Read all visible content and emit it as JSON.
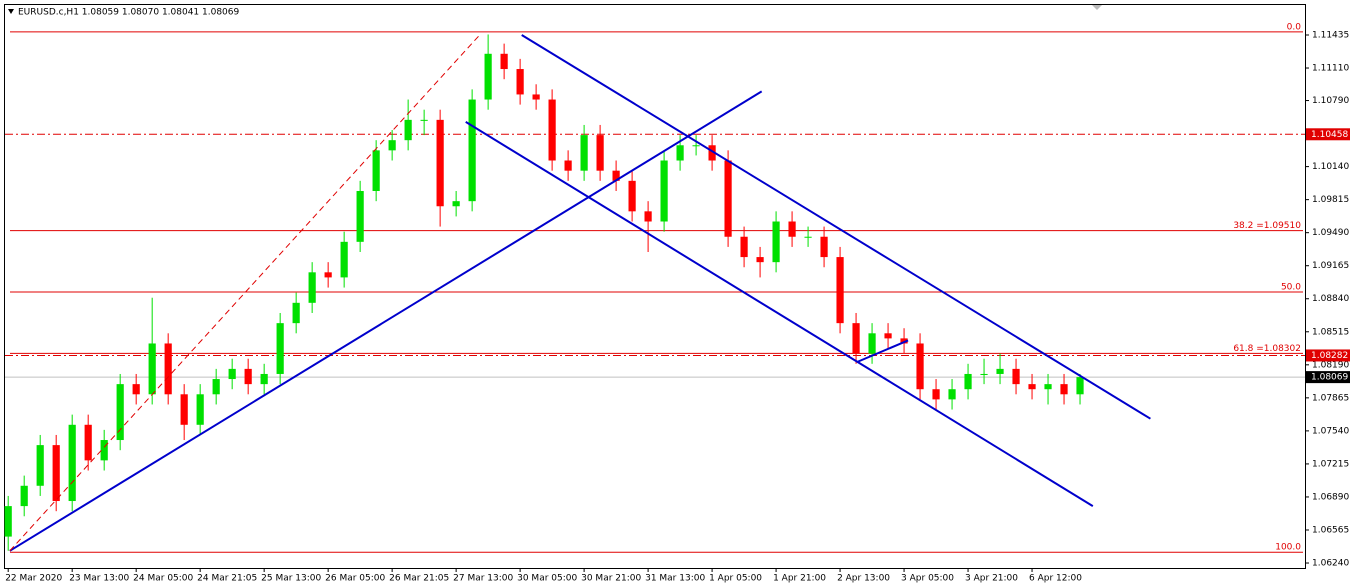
{
  "chart_data": {
    "type": "candlestick",
    "title": "EURUSD.c,H1  1.08059 1.08070 1.08041 1.08069",
    "categories": [
      "22 Mar 2020",
      null,
      null,
      null,
      "23 Mar 13:00",
      null,
      null,
      null,
      "24 Mar 05:00",
      null,
      null,
      null,
      "24 Mar 21:05",
      null,
      null,
      null,
      "25 Mar 13:00",
      null,
      null,
      null,
      "26 Mar 05:00",
      null,
      null,
      null,
      "26 Mar 21:05",
      null,
      null,
      null,
      "27 Mar 13:00",
      null,
      null,
      null,
      "30 Mar 05:00",
      null,
      null,
      null,
      "30 Mar 21:00",
      null,
      null,
      null,
      "31 Mar 13:00",
      null,
      null,
      null,
      "1 Apr 05:00",
      null,
      null,
      null,
      "1 Apr 21:00",
      null,
      null,
      null,
      "2 Apr 13:00",
      null,
      null,
      null,
      "3 Apr 05:00",
      null,
      null,
      null,
      "3 Apr 21:00",
      null,
      null,
      null,
      "6 Apr 12:00",
      null,
      null,
      null
    ],
    "open": [
      1.065,
      1.068,
      1.07,
      1.074,
      1.0685,
      1.076,
      1.0725,
      1.0745,
      1.08,
      1.079,
      1.084,
      1.079,
      1.076,
      1.079,
      1.0805,
      1.0815,
      1.08,
      1.081,
      1.086,
      1.088,
      1.091,
      1.0905,
      1.094,
      1.099,
      1.103,
      1.104,
      1.106,
      1.106,
      1.0975,
      1.098,
      1.108,
      1.1125,
      1.111,
      1.1085,
      1.108,
      1.102,
      1.101,
      1.1045,
      1.101,
      1.1,
      1.097,
      1.096,
      1.102,
      1.1035,
      1.1035,
      1.102,
      1.0945,
      1.0925,
      1.092,
      1.096,
      1.0945,
      1.0945,
      1.0925,
      1.086,
      1.083,
      1.085,
      1.0845,
      1.084,
      1.0795,
      1.0785,
      1.0795,
      1.081,
      1.081,
      1.0815,
      1.08,
      1.0795,
      1.08,
      1.079
    ],
    "high": [
      1.069,
      1.071,
      1.075,
      1.075,
      1.077,
      1.077,
      1.0755,
      1.081,
      1.081,
      1.0885,
      1.085,
      1.08,
      1.08,
      1.0815,
      1.0825,
      1.0825,
      1.082,
      1.087,
      1.089,
      1.092,
      1.092,
      1.095,
      1.1,
      1.104,
      1.105,
      1.108,
      1.107,
      1.107,
      1.099,
      1.109,
      1.1144,
      1.1135,
      1.112,
      1.1095,
      1.109,
      1.103,
      1.1055,
      1.1055,
      1.102,
      1.101,
      1.098,
      1.103,
      1.1045,
      1.1045,
      1.1045,
      1.103,
      1.0955,
      1.0935,
      1.097,
      1.097,
      1.0955,
      1.0955,
      1.0935,
      1.087,
      1.086,
      1.086,
      1.0855,
      1.085,
      1.0805,
      1.0805,
      1.082,
      1.0825,
      1.083,
      1.0825,
      1.081,
      1.081,
      1.081,
      1.081
    ],
    "low": [
      1.0636,
      1.067,
      1.069,
      1.0675,
      1.0675,
      1.0715,
      1.0715,
      1.0735,
      1.078,
      1.078,
      1.078,
      1.0745,
      1.075,
      1.078,
      1.0795,
      1.079,
      1.079,
      1.08,
      1.085,
      1.087,
      1.0895,
      1.0895,
      1.093,
      1.098,
      1.102,
      1.103,
      1.1045,
      1.0955,
      1.0965,
      1.097,
      1.107,
      1.11,
      1.1075,
      1.107,
      1.101,
      1.1,
      1.1,
      1.1,
      1.099,
      1.096,
      1.093,
      1.095,
      1.101,
      1.1025,
      1.101,
      1.0935,
      1.0915,
      1.0905,
      1.091,
      1.0935,
      1.0935,
      1.0915,
      1.085,
      1.082,
      1.082,
      1.0835,
      1.083,
      1.0785,
      1.0775,
      1.0775,
      1.0785,
      1.08,
      1.08,
      1.079,
      1.0785,
      1.078,
      1.078,
      1.078
    ],
    "close": [
      1.068,
      1.07,
      1.074,
      1.0685,
      1.076,
      1.0725,
      1.0745,
      1.08,
      1.079,
      1.084,
      1.079,
      1.076,
      1.079,
      1.0805,
      1.0815,
      1.08,
      1.081,
      1.086,
      1.088,
      1.091,
      1.0905,
      1.094,
      1.099,
      1.103,
      1.104,
      1.106,
      1.106,
      1.0975,
      1.098,
      1.108,
      1.1125,
      1.111,
      1.1085,
      1.108,
      1.102,
      1.101,
      1.1045,
      1.101,
      1.1,
      1.097,
      1.096,
      1.102,
      1.1035,
      1.1035,
      1.102,
      1.0945,
      1.0925,
      1.092,
      1.096,
      1.0945,
      1.0945,
      1.0925,
      1.086,
      1.083,
      1.085,
      1.0845,
      1.084,
      1.0795,
      1.0785,
      1.0795,
      1.081,
      1.081,
      1.0815,
      1.08,
      1.0795,
      1.08,
      1.079,
      1.08069
    ],
    "up_color": "#00e000",
    "down_color": "#ff0000",
    "xlim": [
      -0.2,
      80.75
    ],
    "ylim": [
      1.06191,
      1.1173
    ],
    "yticks": [
      1.11435,
      {
        "value": 1.1111,
        "label": "1.11110"
      },
      {
        "value": 1.1079,
        "label": "1.10790"
      },
      {
        "value": 1.1014,
        "label": "1.10140"
      },
      1.09815,
      {
        "value": 1.0949,
        "label": "1.09490"
      },
      1.09165,
      {
        "value": 1.0884,
        "label": "1.08840"
      },
      1.08515,
      {
        "value": 1.0819,
        "label": "1.08190"
      },
      1.07865,
      {
        "value": 1.0754,
        "label": "1.07540"
      },
      1.07215,
      {
        "value": 1.0689,
        "label": "1.06890"
      },
      1.06565,
      {
        "value": 1.0624,
        "label": "1.06240"
      }
    ],
    "fib_color": "#e00000",
    "fib_levels": [
      {
        "label": "0.0",
        "value": 1.11465
      },
      {
        "label": "38.2 =1.09510",
        "value": 1.0951
      },
      {
        "label": "50.0",
        "value": 1.08906
      },
      {
        "label": "61.8 =1.08302",
        "value": 1.08302
      },
      {
        "label": "100.0",
        "value": 1.06346
      }
    ],
    "price_lines": [
      {
        "value": 1.10458,
        "color": "#e00000",
        "style": "dashdot"
      },
      {
        "value": 1.08282,
        "color": "#e00000",
        "style": "dashdot"
      },
      {
        "value": 1.08069,
        "color": "#000000",
        "style": "solid"
      }
    ],
    "trend_lines": [
      {
        "x": [
          0.1,
          47.1
        ],
        "y": [
          1.0636,
          1.1088
        ],
        "color": "#0000cc",
        "style": "solid"
      },
      {
        "x": [
          28.6,
          67.8
        ],
        "y": [
          1.1058,
          1.068
        ],
        "color": "#0000cc",
        "style": "solid"
      },
      {
        "x": [
          32.1,
          71.4
        ],
        "y": [
          1.11435,
          1.0766
        ],
        "color": "#0000cc",
        "style": "solid"
      },
      {
        "x": [
          53.1,
          56.25
        ],
        "y": [
          1.0822,
          1.0843
        ],
        "color": "#0000cc",
        "style": "solid"
      },
      {
        "x": [
          0.1,
          29.5
        ],
        "y": [
          1.0636,
          1.1144
        ],
        "color": "#e00000",
        "style": "dash"
      }
    ]
  }
}
